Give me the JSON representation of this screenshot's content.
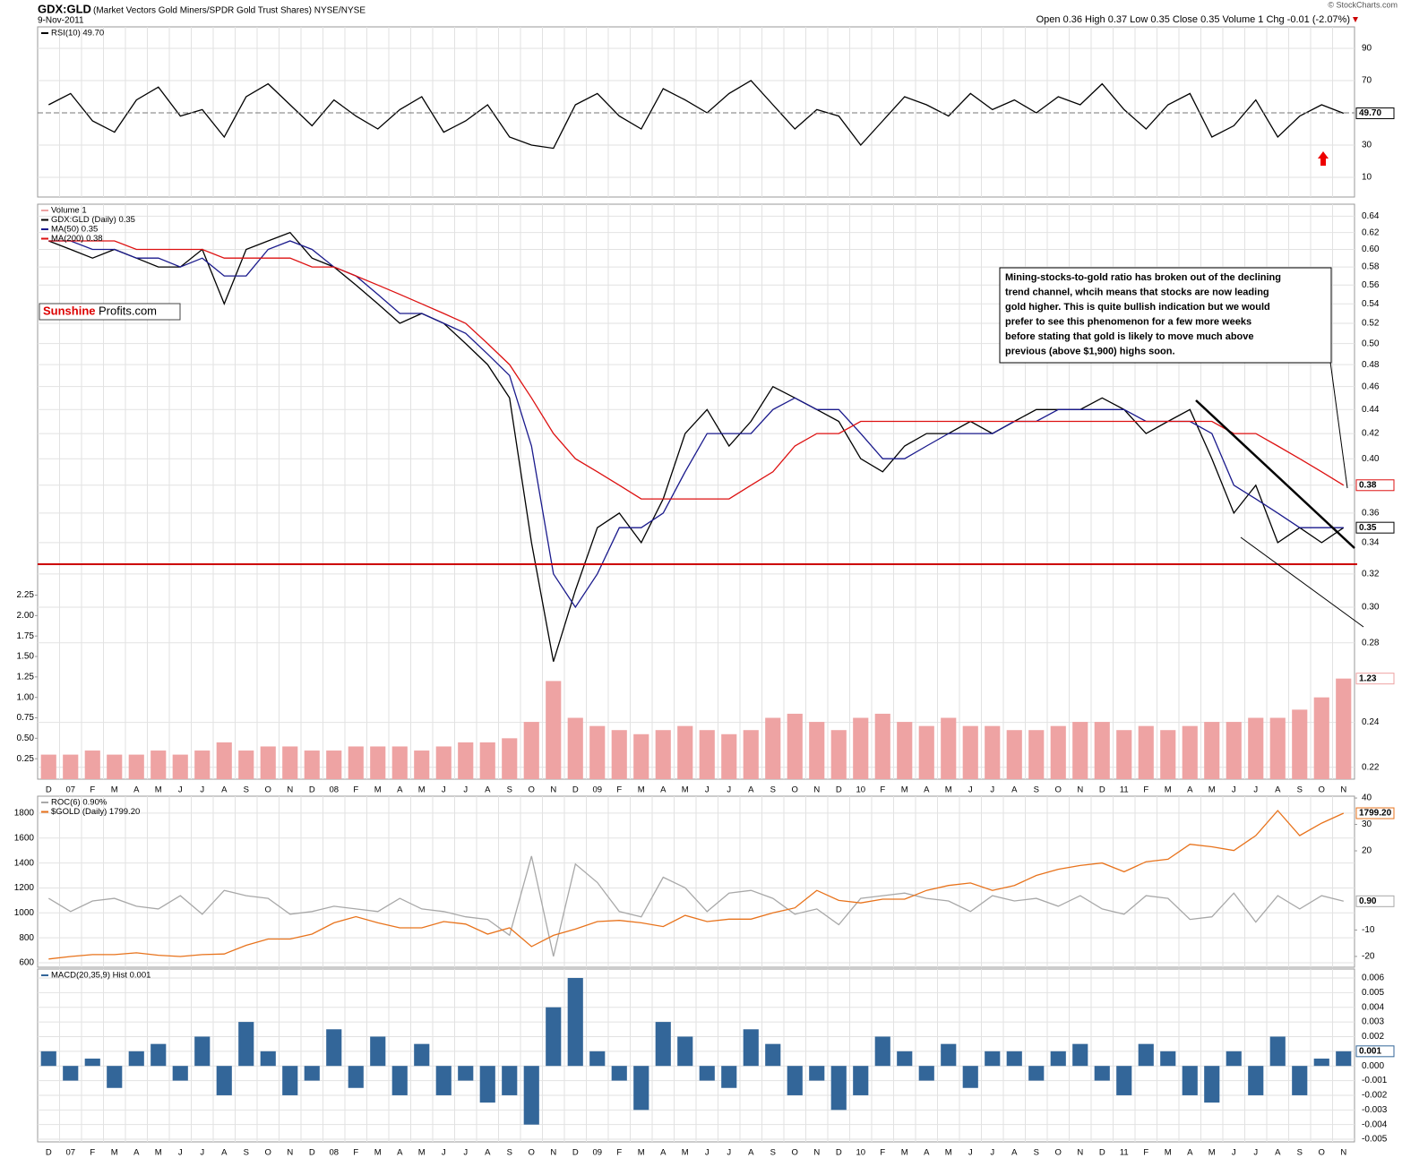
{
  "header": {
    "symbol": "GDX:GLD",
    "description": "(Market Vectors Gold Miners/SPDR Gold Trust Shares) NYSE/NYSE",
    "date": "9-Nov-2011",
    "copyright": "© StockCharts.com",
    "quote": "Open 0.36  High 0.37  Low 0.35  Close 0.35  Volume 1  Chg -0.01 (-2.07%)"
  },
  "logo": [
    "Sunshine",
    "Profits.com"
  ],
  "annotation": [
    "Mining-stocks-to-gold ratio has broken out of the declining",
    "trend channel, whcih means that stocks are now leading",
    "gold higher. This is quite bullish indication but we would",
    "prefer to see this phenomenon for a few more weeks",
    "before stating that gold is likely to move much above",
    "previous (above $1,900) highs soon."
  ],
  "chart_data": [
    {
      "type": "line",
      "ylim": [
        -2.2,
        103.3
      ],
      "yticks": [
        90,
        70,
        30,
        10
      ],
      "yaxis_side": "right",
      "grid": true,
      "series": [
        {
          "name": "RSI(10) 49.70",
          "color": "#000000",
          "last_label": "49.70",
          "values": [
            55,
            62,
            45,
            38,
            58,
            66,
            48,
            52,
            35,
            60,
            68,
            55,
            42,
            58,
            48,
            40,
            52,
            60,
            38,
            45,
            55,
            35,
            30,
            28,
            55,
            62,
            48,
            40,
            65,
            58,
            50,
            62,
            70,
            55,
            40,
            52,
            48,
            30,
            45,
            60,
            55,
            48,
            62,
            52,
            58,
            50,
            60,
            55,
            68,
            52,
            40,
            55,
            62,
            35,
            42,
            58,
            35,
            48,
            55,
            49.7
          ]
        }
      ]
    },
    {
      "type": "line",
      "log_scale": true,
      "ylim": [
        0.215,
        0.655
      ],
      "yticks": [
        0.64,
        0.62,
        {
          "value": 0.6,
          "label": "0.60"
        },
        0.58,
        0.56,
        0.54,
        0.52,
        {
          "value": 0.5,
          "label": "0.50"
        },
        0.48,
        0.46,
        0.44,
        0.42,
        {
          "value": 0.4,
          "label": "0.40"
        },
        0.38,
        0.36,
        0.34,
        0.32,
        {
          "value": 0.3,
          "label": "0.30"
        },
        0.28,
        0.24,
        0.22
      ],
      "yaxis_side": "right",
      "y2lim": [
        0,
        7.03
      ],
      "y2ticks": [
        0.25,
        {
          "value": 0.5,
          "label": "0.50"
        },
        0.75,
        {
          "value": 1,
          "label": "1.00"
        },
        1.25,
        {
          "value": 1.5,
          "label": "1.50"
        },
        1.75,
        {
          "value": 2,
          "label": "2.00"
        },
        2.25
      ],
      "y2axis_side": "left",
      "grid": true,
      "categories": [
        "D",
        "07",
        "F",
        "M",
        "A",
        "M",
        "J",
        "J",
        "A",
        "S",
        "O",
        "N",
        "D",
        "08",
        "F",
        "M",
        "A",
        "M",
        "J",
        "J",
        "A",
        "S",
        "O",
        "N",
        "D",
        "09",
        "F",
        "M",
        "A",
        "M",
        "J",
        "J",
        "A",
        "S",
        "O",
        "N",
        "D",
        "10",
        "F",
        "M",
        "A",
        "M",
        "J",
        "J",
        "A",
        "S",
        "O",
        "N",
        "D",
        "11",
        "F",
        "M",
        "A",
        "M",
        "J",
        "J",
        "A",
        "S",
        "O",
        "N"
      ],
      "series": [
        {
          "name": "Volume 1",
          "type": "bar",
          "axis": "y2",
          "color": "#eea3a3",
          "last_label": "1.23",
          "values": [
            0.3,
            0.3,
            0.35,
            0.3,
            0.3,
            0.35,
            0.3,
            0.35,
            0.45,
            0.35,
            0.4,
            0.4,
            0.35,
            0.35,
            0.4,
            0.4,
            0.4,
            0.35,
            0.4,
            0.45,
            0.45,
            0.5,
            0.7,
            1.2,
            0.75,
            0.65,
            0.6,
            0.55,
            0.6,
            0.65,
            0.6,
            0.55,
            0.6,
            0.75,
            0.8,
            0.7,
            0.6,
            0.75,
            0.8,
            0.7,
            0.65,
            0.75,
            0.65,
            0.65,
            0.6,
            0.6,
            0.65,
            0.7,
            0.7,
            0.6,
            0.65,
            0.6,
            0.65,
            0.7,
            0.7,
            0.75,
            0.75,
            0.85,
            1.0,
            1.23
          ]
        },
        {
          "name": "GDX:GLD (Daily) 0.35",
          "color": "#000000",
          "last_label": "0.35",
          "values": [
            0.61,
            0.6,
            0.59,
            0.6,
            0.59,
            0.58,
            0.58,
            0.6,
            0.54,
            0.6,
            0.61,
            0.62,
            0.59,
            0.58,
            0.56,
            0.54,
            0.52,
            0.53,
            0.52,
            0.5,
            0.48,
            0.45,
            0.34,
            0.27,
            0.31,
            0.35,
            0.36,
            0.34,
            0.37,
            0.42,
            0.44,
            0.41,
            0.43,
            0.46,
            0.45,
            0.44,
            0.43,
            0.4,
            0.39,
            0.41,
            0.42,
            0.42,
            0.43,
            0.42,
            0.43,
            0.44,
            0.44,
            0.44,
            0.45,
            0.44,
            0.42,
            0.43,
            0.44,
            0.4,
            0.36,
            0.38,
            0.34,
            0.35,
            0.34,
            0.35
          ]
        },
        {
          "name": "MA(50) 0.35",
          "color": "#1a1a8c",
          "values": [
            0.61,
            0.61,
            0.6,
            0.6,
            0.59,
            0.59,
            0.58,
            0.59,
            0.57,
            0.57,
            0.6,
            0.61,
            0.6,
            0.58,
            0.57,
            0.55,
            0.53,
            0.53,
            0.52,
            0.51,
            0.49,
            0.47,
            0.41,
            0.32,
            0.3,
            0.32,
            0.35,
            0.35,
            0.36,
            0.39,
            0.42,
            0.42,
            0.42,
            0.44,
            0.45,
            0.44,
            0.44,
            0.42,
            0.4,
            0.4,
            0.41,
            0.42,
            0.42,
            0.42,
            0.43,
            0.43,
            0.44,
            0.44,
            0.44,
            0.44,
            0.43,
            0.43,
            0.43,
            0.42,
            0.38,
            0.37,
            0.36,
            0.35,
            0.35,
            0.35
          ]
        },
        {
          "name": "MA(200) 0.38",
          "color": "#dd1111",
          "last_label": "0.38",
          "values": [
            0.61,
            0.61,
            0.61,
            0.61,
            0.6,
            0.6,
            0.6,
            0.6,
            0.59,
            0.59,
            0.59,
            0.59,
            0.58,
            0.58,
            0.57,
            0.56,
            0.55,
            0.54,
            0.53,
            0.52,
            0.5,
            0.48,
            0.45,
            0.42,
            0.4,
            0.39,
            0.38,
            0.37,
            0.37,
            0.37,
            0.37,
            0.37,
            0.38,
            0.39,
            0.41,
            0.42,
            0.42,
            0.43,
            0.43,
            0.43,
            0.43,
            0.43,
            0.43,
            0.43,
            0.43,
            0.43,
            0.43,
            0.43,
            0.43,
            0.43,
            0.43,
            0.43,
            0.43,
            0.43,
            0.42,
            0.42,
            0.41,
            0.4,
            0.39,
            0.38
          ]
        }
      ]
    },
    {
      "type": "line",
      "ylim": [
        564,
        1936
      ],
      "yticks": [
        600,
        800,
        1000,
        1200,
        1400,
        1600,
        1800
      ],
      "yaxis_side": "left",
      "y2lim": [
        -24.1,
        40.7
      ],
      "y2ticks": [
        40,
        30,
        20,
        -10,
        -20
      ],
      "y2axis_side": "right",
      "grid": true,
      "series": [
        {
          "name": "ROC(6) 0.90%",
          "axis": "y2",
          "color": "#a8a8a8",
          "last_label": "0.90",
          "values": [
            2,
            -3,
            1,
            2,
            -1,
            -2,
            3,
            -4,
            5,
            3,
            2,
            -4,
            -3,
            -1,
            -2,
            -3,
            2,
            -2,
            -3,
            -5,
            -6,
            -12,
            18,
            -20,
            15,
            8,
            -3,
            -5,
            10,
            6,
            -3,
            4,
            5,
            2,
            -4,
            -2,
            -8,
            2,
            3,
            4,
            2,
            1,
            -3,
            3,
            1,
            2,
            -1,
            3,
            -2,
            -4,
            3,
            2,
            -6,
            -5,
            4,
            -7,
            3,
            -2,
            3,
            0.9
          ]
        },
        {
          "name": "$GOLD (Daily) 1799.20",
          "color": "#e8731c",
          "last_label": "1799.20",
          "values": [
            630,
            650,
            665,
            665,
            680,
            660,
            650,
            665,
            670,
            740,
            790,
            790,
            830,
            920,
            970,
            920,
            880,
            880,
            930,
            910,
            830,
            880,
            730,
            820,
            870,
            930,
            940,
            920,
            890,
            980,
            930,
            950,
            950,
            1000,
            1040,
            1180,
            1100,
            1080,
            1110,
            1110,
            1180,
            1220,
            1240,
            1180,
            1220,
            1300,
            1350,
            1380,
            1400,
            1330,
            1410,
            1430,
            1550,
            1530,
            1500,
            1620,
            1820,
            1620,
            1720,
            1799.2
          ]
        }
      ]
    },
    {
      "type": "bar",
      "ylim": [
        -0.00518,
        0.00661
      ],
      "yticks": [
        0.006,
        0.005,
        0.004,
        0.003,
        0.002,
        0.001,
        {
          "value": 0,
          "label": "0.000"
        },
        -0.001,
        -0.002,
        -0.003,
        -0.004,
        -0.005
      ],
      "yaxis_side": "right",
      "grid": true,
      "categories": [
        "D",
        "07",
        "F",
        "M",
        "A",
        "M",
        "J",
        "J",
        "A",
        "S",
        "O",
        "N",
        "D",
        "08",
        "F",
        "M",
        "A",
        "M",
        "J",
        "J",
        "A",
        "S",
        "O",
        "N",
        "D",
        "09",
        "F",
        "M",
        "A",
        "M",
        "J",
        "J",
        "A",
        "S",
        "O",
        "N",
        "D",
        "10",
        "F",
        "M",
        "A",
        "M",
        "J",
        "J",
        "A",
        "S",
        "O",
        "N",
        "D",
        "11",
        "F",
        "M",
        "A",
        "M",
        "J",
        "J",
        "A",
        "S",
        "O",
        "N"
      ],
      "series": [
        {
          "name": "MACD(20,35,9) Hist 0.001",
          "color": "#336699",
          "last_label": "0.001",
          "values": [
            0.001,
            -0.001,
            0.0005,
            -0.0015,
            0.001,
            0.0015,
            -0.001,
            0.002,
            -0.002,
            0.003,
            0.001,
            -0.002,
            -0.001,
            0.0025,
            -0.0015,
            0.002,
            -0.002,
            0.0015,
            -0.002,
            -0.001,
            -0.0025,
            -0.002,
            -0.004,
            0.004,
            0.006,
            0.001,
            -0.001,
            -0.003,
            0.003,
            0.002,
            -0.001,
            -0.0015,
            0.0025,
            0.0015,
            -0.002,
            -0.001,
            -0.003,
            -0.002,
            0.002,
            0.001,
            -0.001,
            0.0015,
            -0.0015,
            0.001,
            0.001,
            -0.001,
            0.001,
            0.0015,
            -0.001,
            -0.002,
            0.0015,
            0.001,
            -0.002,
            -0.0025,
            0.001,
            -0.002,
            0.002,
            -0.002,
            0.0005,
            0.001
          ]
        }
      ]
    }
  ]
}
